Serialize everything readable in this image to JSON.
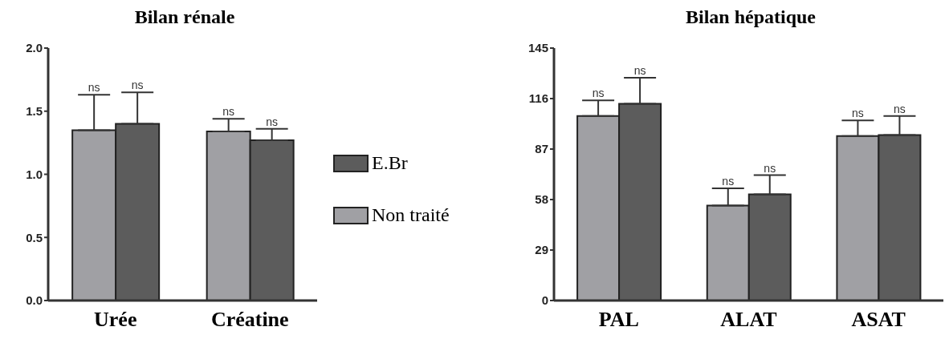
{
  "chart_data": [
    {
      "type": "bar",
      "title": "Bilan rénale",
      "categories": [
        "Urée",
        "Créatine"
      ],
      "ylim": [
        0,
        2.0
      ],
      "yticks": [
        {
          "value": 0,
          "label": "0.0"
        },
        0.5,
        {
          "value": 1,
          "label": "1.0"
        },
        1.5,
        {
          "value": 2,
          "label": "2.0"
        }
      ],
      "legend": "right",
      "series": [
        {
          "name": "Non traité",
          "color": "#a0a0a4",
          "values": [
            1.35,
            1.34
          ],
          "errors": [
            [
              1.35,
              1.63
            ],
            [
              1.34,
              1.44
            ]
          ]
        },
        {
          "name": "E.Br",
          "color": "#5c5c5c",
          "values": [
            1.4,
            1.27
          ],
          "errors": [
            [
              1.4,
              1.65
            ],
            [
              1.27,
              1.36
            ]
          ]
        }
      ],
      "annotations": [
        "ns",
        "ns",
        "ns",
        "ns"
      ]
    },
    {
      "type": "bar",
      "title": "Bilan hépatique",
      "categories": [
        "PAL",
        "ALAT",
        "ASAT"
      ],
      "ylim": [
        0,
        145
      ],
      "yticks": [
        0,
        29,
        58,
        87,
        116,
        145
      ],
      "series": [
        {
          "color": "#a0a0a4",
          "values": [
            106,
            54.5,
            94.5
          ],
          "errors": [
            [
              106,
              115
            ],
            [
              54.5,
              64.5
            ],
            [
              94.5,
              103.5
            ]
          ]
        },
        {
          "color": "#5c5c5c",
          "values": [
            113,
            61,
            95
          ],
          "errors": [
            [
              113,
              128
            ],
            [
              61,
              72
            ],
            [
              95,
              106
            ]
          ]
        }
      ],
      "annotations": [
        "ns",
        "ns",
        "ns",
        "ns",
        "ns",
        "ns"
      ]
    }
  ]
}
